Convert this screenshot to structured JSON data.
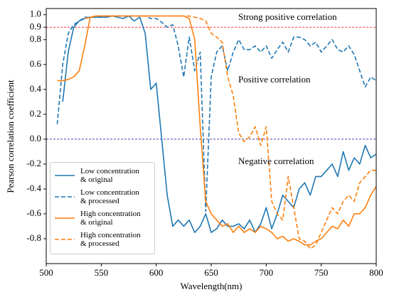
{
  "chart_data": {
    "type": "line",
    "xlabel": "Wavelength(nm)",
    "ylabel": "Pearson correlation coefficient",
    "x": [
      510,
      515,
      520,
      525,
      530,
      535,
      540,
      545,
      550,
      555,
      560,
      565,
      570,
      575,
      580,
      585,
      590,
      595,
      600,
      605,
      610,
      615,
      620,
      625,
      630,
      635,
      640,
      645,
      650,
      655,
      660,
      665,
      670,
      675,
      680,
      685,
      690,
      695,
      700,
      705,
      710,
      715,
      720,
      725,
      730,
      735,
      740,
      745,
      750,
      755,
      760,
      765,
      770,
      775,
      780,
      785,
      790,
      795,
      800
    ],
    "series": [
      {
        "name": "Low concentration\n& original",
        "color": "#1f77b4",
        "dash": false,
        "values": [
          null,
          0.3,
          0.7,
          0.9,
          0.95,
          0.97,
          0.98,
          0.98,
          0.98,
          0.98,
          0.99,
          0.98,
          0.97,
          0.99,
          0.95,
          0.98,
          0.85,
          0.4,
          0.45,
          0.0,
          -0.45,
          -0.7,
          -0.65,
          -0.7,
          -0.65,
          -0.75,
          -0.7,
          -0.6,
          -0.75,
          -0.72,
          -0.65,
          -0.7,
          -0.7,
          -0.68,
          -0.72,
          -0.65,
          -0.75,
          -0.68,
          -0.55,
          -0.72,
          -0.6,
          -0.45,
          -0.5,
          -0.55,
          -0.4,
          -0.35,
          -0.45,
          -0.3,
          -0.3,
          -0.25,
          -0.2,
          -0.3,
          -0.1,
          -0.25,
          -0.15,
          -0.2,
          -0.05,
          -0.15,
          -0.12
        ]
      },
      {
        "name": "Low concentration\n& processed",
        "color": "#1f77b4",
        "dash": true,
        "values": [
          0.12,
          0.6,
          0.85,
          0.92,
          0.95,
          0.98,
          0.98,
          0.98,
          0.99,
          0.99,
          0.99,
          0.99,
          0.99,
          0.99,
          0.99,
          0.99,
          0.99,
          0.97,
          0.97,
          0.94,
          0.9,
          0.92,
          0.75,
          0.5,
          0.82,
          0.55,
          0.7,
          -0.58,
          0.5,
          0.7,
          0.75,
          0.55,
          0.7,
          0.8,
          0.72,
          0.72,
          0.75,
          0.7,
          0.75,
          0.65,
          0.72,
          0.78,
          0.7,
          0.82,
          0.82,
          0.8,
          0.75,
          0.78,
          0.7,
          0.75,
          0.8,
          0.72,
          0.7,
          0.75,
          0.68,
          0.55,
          0.42,
          0.5,
          0.47
        ]
      },
      {
        "name": "High concentration\n& original",
        "color": "#ff7f0e",
        "dash": false,
        "values": [
          0.47,
          0.47,
          0.48,
          0.5,
          0.55,
          0.75,
          0.98,
          0.99,
          0.99,
          0.99,
          0.99,
          0.99,
          0.99,
          0.99,
          0.99,
          0.99,
          0.99,
          0.99,
          0.99,
          0.99,
          0.99,
          0.99,
          0.99,
          0.99,
          0.97,
          0.8,
          0.1,
          -0.5,
          -0.6,
          -0.65,
          -0.7,
          -0.68,
          -0.75,
          -0.7,
          -0.75,
          -0.72,
          -0.75,
          -0.7,
          -0.72,
          -0.75,
          -0.8,
          -0.78,
          -0.82,
          -0.8,
          -0.82,
          -0.85,
          -0.85,
          -0.82,
          -0.8,
          -0.75,
          -0.7,
          -0.72,
          -0.65,
          -0.7,
          -0.6,
          -0.6,
          -0.55,
          -0.45,
          -0.38
        ]
      },
      {
        "name": "High concentration\n& processed",
        "color": "#ff7f0e",
        "dash": true,
        "values": [
          null,
          null,
          null,
          null,
          null,
          0.97,
          0.98,
          0.99,
          0.99,
          0.99,
          0.99,
          0.99,
          0.99,
          0.99,
          0.99,
          0.99,
          0.99,
          0.99,
          0.99,
          0.99,
          0.99,
          0.99,
          0.99,
          0.99,
          0.99,
          0.98,
          0.97,
          0.95,
          0.85,
          0.82,
          0.78,
          0.5,
          0.35,
          0.05,
          -0.02,
          0.02,
          0.1,
          -0.05,
          0.1,
          -0.5,
          -0.6,
          -0.65,
          -0.3,
          -0.55,
          -0.8,
          -0.82,
          -0.88,
          -0.85,
          -0.75,
          -0.65,
          -0.55,
          -0.6,
          -0.5,
          -0.45,
          -0.5,
          -0.35,
          -0.3,
          -0.25,
          -0.25
        ]
      }
    ],
    "xlim": [
      500,
      800
    ],
    "xticks": [
      500,
      550,
      600,
      650,
      700,
      750,
      800
    ],
    "ylim": [
      -1.0,
      1.05
    ],
    "yticks": [
      {
        "value": 1,
        "label": "1.0"
      },
      0.9,
      0.8,
      0.6,
      0.4,
      0.2,
      {
        "value": 0,
        "label": "0.0"
      },
      -0.2,
      -0.4,
      -0.6,
      -0.8
    ],
    "hlines": [
      {
        "value": 0.9,
        "color": "#ff0000"
      },
      {
        "value": 0,
        "color": "#00008b"
      }
    ],
    "annotations": [
      "Strong positive correlation",
      "Positive correlation",
      "Negative correlation"
    ],
    "legend": "lower left",
    "grid": false
  }
}
